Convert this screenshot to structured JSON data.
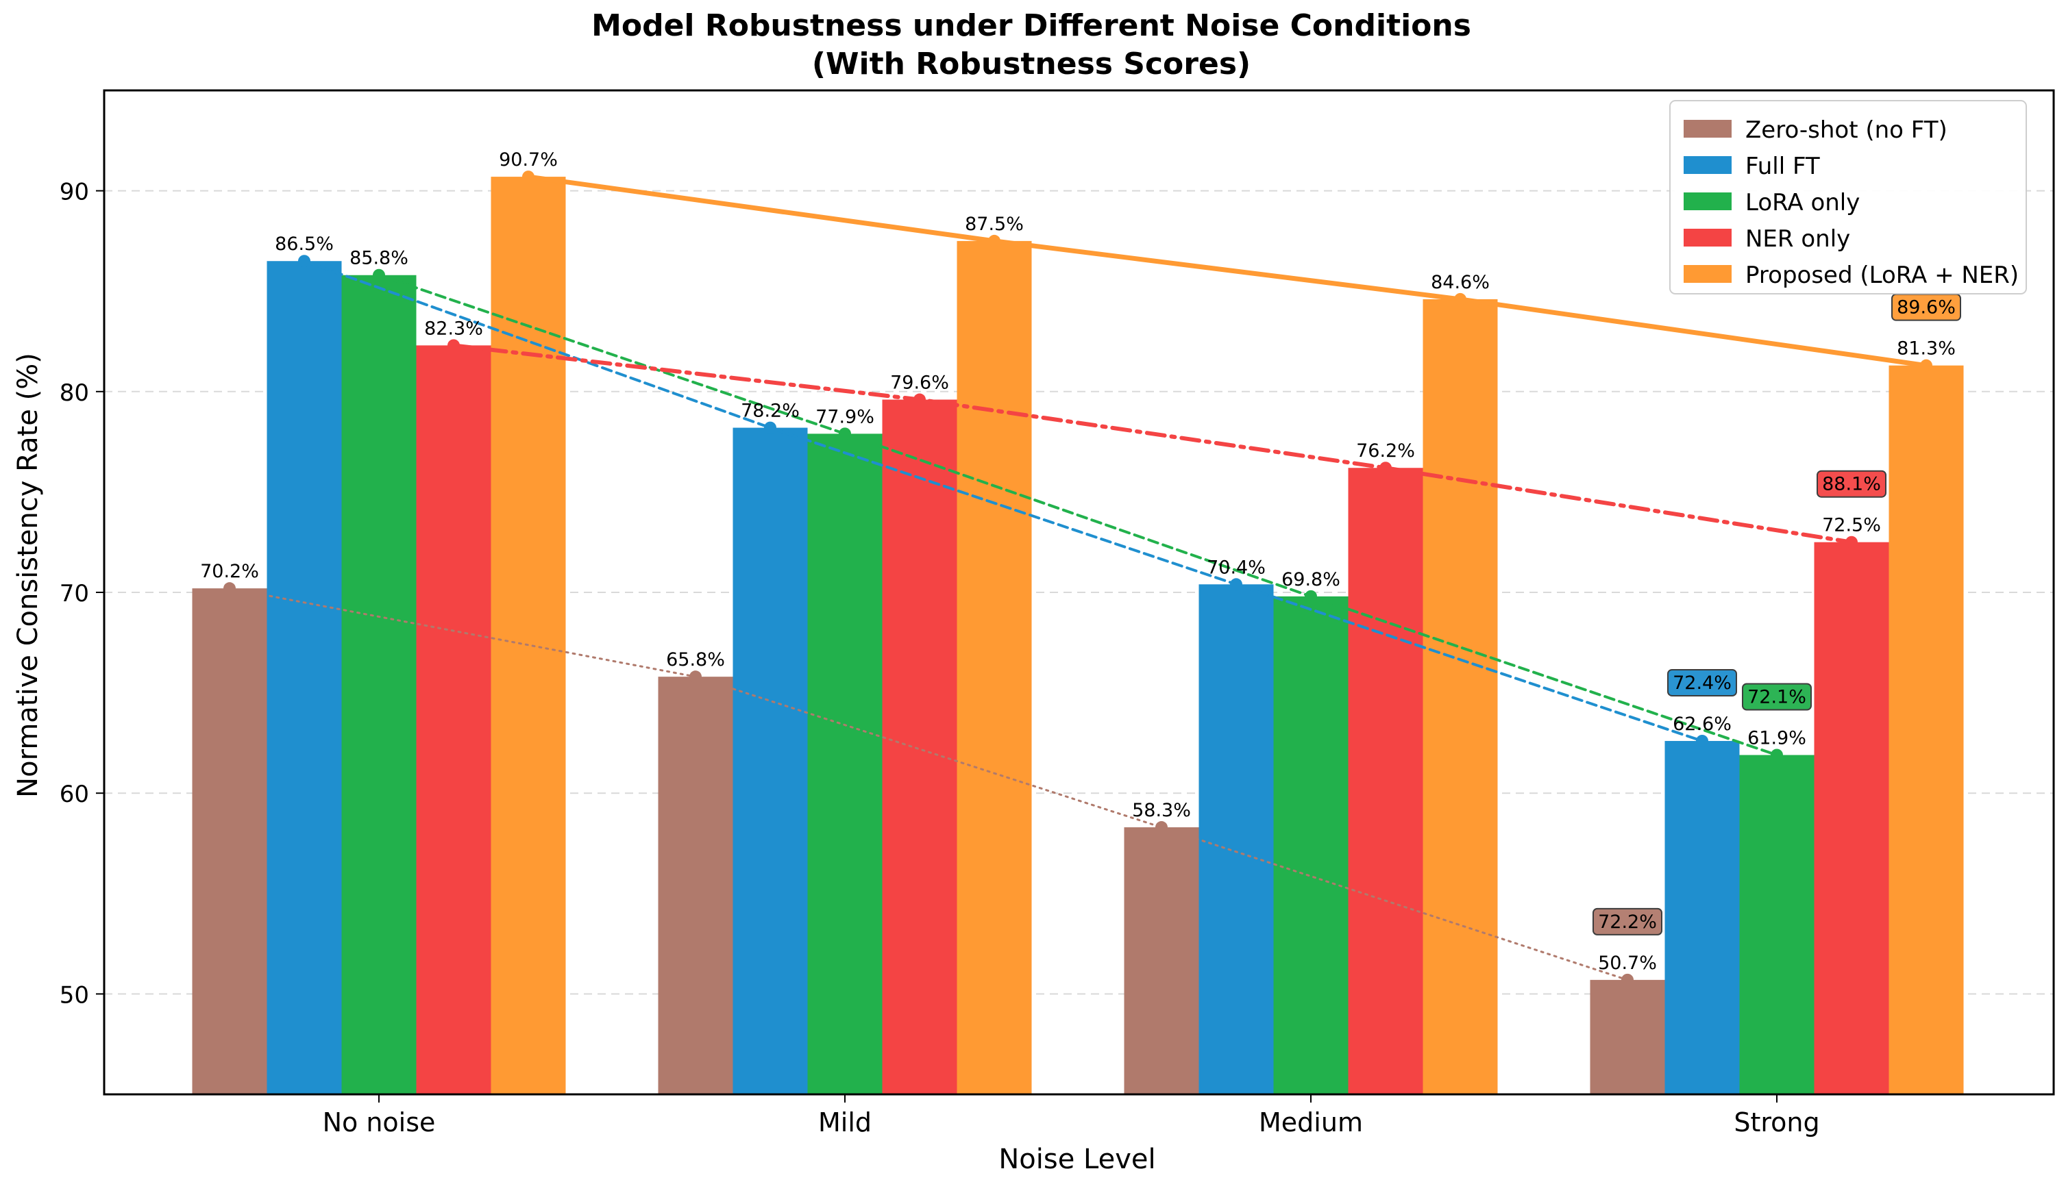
{
  "chart_data": {
    "type": "bar",
    "title": "Model Robustness under Different Noise Conditions",
    "subtitle": "(With Robustness Scores)",
    "xlabel": "Noise Level",
    "ylabel": "Normative Consistency Rate (%)",
    "ylim": [
      45,
      95
    ],
    "yticks": [
      50,
      60,
      70,
      80,
      90
    ],
    "categories": [
      "No noise",
      "Mild",
      "Medium",
      "Strong"
    ],
    "legend_position": "top-right",
    "grid": "horizontal dashed",
    "series": [
      {
        "name": "Zero-shot (no FT)",
        "color": "#b07a6c",
        "values": [
          70.2,
          65.8,
          58.3,
          50.7
        ],
        "labels": [
          "70.2%",
          "65.8%",
          "58.3%",
          "50.7%"
        ],
        "line_style": "dotted",
        "robustness_score": "72.2%"
      },
      {
        "name": "Full FT",
        "color": "#1f8fcf",
        "values": [
          86.5,
          78.2,
          70.4,
          62.6
        ],
        "labels": [
          "86.5%",
          "78.2%",
          "70.4%",
          "62.6%"
        ],
        "line_style": "dashed",
        "robustness_score": "72.4%"
      },
      {
        "name": "LoRA only",
        "color": "#22b14c",
        "values": [
          85.8,
          77.9,
          69.8,
          61.9
        ],
        "labels": [
          "85.8%",
          "77.9%",
          "69.8%",
          "61.9%"
        ],
        "line_style": "dashed",
        "robustness_score": "72.1%"
      },
      {
        "name": "NER only",
        "color": "#f44444",
        "values": [
          82.3,
          79.6,
          76.2,
          72.5
        ],
        "labels": [
          "82.3%",
          "79.6%",
          "76.2%",
          "72.5%"
        ],
        "line_style": "dashdot",
        "robustness_score": "88.1%"
      },
      {
        "name": "Proposed (LoRA + NER)",
        "color": "#ff9a33",
        "values": [
          90.7,
          87.5,
          84.6,
          81.3
        ],
        "labels": [
          "90.7%",
          "87.5%",
          "84.6%",
          "81.3%"
        ],
        "line_style": "solid",
        "robustness_score": "89.6%"
      }
    ]
  }
}
